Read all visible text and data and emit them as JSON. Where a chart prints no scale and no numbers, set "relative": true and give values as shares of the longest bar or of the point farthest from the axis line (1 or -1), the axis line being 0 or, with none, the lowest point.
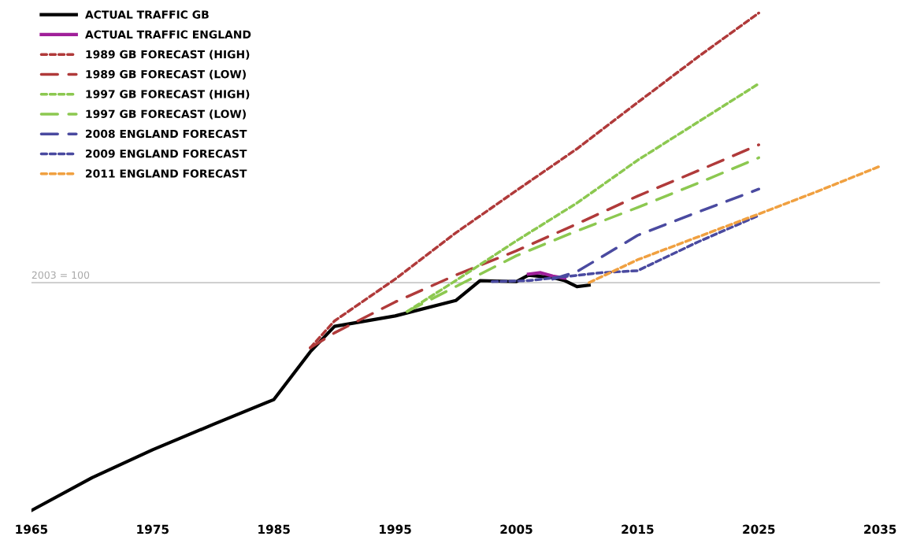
{
  "chart_data": {
    "type": "line",
    "relative": true,
    "legend": "top left",
    "grid": false,
    "xlim": [
      1965,
      2035
    ],
    "xticks": [
      1965,
      1975,
      1985,
      1995,
      2005,
      2015,
      2025,
      2035
    ],
    "ref_lines": [
      {
        "axis": "y",
        "value": 0.458,
        "color": "#c8c8c8",
        "line_style": "solid"
      }
    ],
    "annotations": [
      "2003 = 100"
    ],
    "series": [
      {
        "name": "ACTUAL TRAFFIC GB",
        "color": "#000000",
        "line_style": "solid",
        "x": [
          1965,
          1970,
          1975,
          1980,
          1985,
          1988,
          1990,
          1995,
          2000,
          2002,
          2005,
          2006,
          2008,
          2009,
          2010,
          2011
        ],
        "values": [
          0,
          0.066,
          0.122,
          0.173,
          0.223,
          0.319,
          0.37,
          0.391,
          0.422,
          0.462,
          0.46,
          0.473,
          0.468,
          0.462,
          0.45,
          0.453
        ]
      },
      {
        "name": "ACTUAL TRAFFIC ENGLAND",
        "color": "#a0209a",
        "line_style": "solid",
        "x": [
          2006,
          2007,
          2008,
          2009
        ],
        "values": [
          0.475,
          0.478,
          0.471,
          0.467
        ]
      },
      {
        "name": "1989 GB FORECAST (HIGH)",
        "color": "#b03a3a",
        "line_style": "dotted",
        "x": [
          1988,
          1990,
          1995,
          2000,
          2005,
          2010,
          2015,
          2020,
          2025
        ],
        "values": [
          0.327,
          0.381,
          0.465,
          0.558,
          0.643,
          0.727,
          0.82,
          0.912,
          1
        ]
      },
      {
        "name": "1989 GB FORECAST (LOW)",
        "color": "#b03a3a",
        "line_style": "dashed",
        "x": [
          1988,
          1990,
          1995,
          2000,
          2005,
          2010,
          2015,
          2020,
          2025
        ],
        "values": [
          0.327,
          0.357,
          0.419,
          0.473,
          0.522,
          0.576,
          0.632,
          0.683,
          0.735
        ]
      },
      {
        "name": "1997 GB FORECAST (HIGH)",
        "color": "#8cc850",
        "line_style": "dotted",
        "x": [
          1996,
          2000,
          2005,
          2010,
          2015,
          2020,
          2025
        ],
        "values": [
          0.4,
          0.462,
          0.542,
          0.618,
          0.704,
          0.781,
          0.858
        ]
      },
      {
        "name": "1997 GB FORECAST (LOW)",
        "color": "#8cc850",
        "line_style": "dashed",
        "x": [
          1996,
          2000,
          2005,
          2010,
          2015,
          2020,
          2025
        ],
        "values": [
          0.4,
          0.45,
          0.512,
          0.562,
          0.609,
          0.658,
          0.709
        ]
      },
      {
        "name": "2008 ENGLAND FORECAST",
        "color": "#4a4aa0",
        "line_style": "dashed",
        "x": [
          2008,
          2010,
          2015,
          2020,
          2025
        ],
        "values": [
          0.465,
          0.48,
          0.553,
          0.6,
          0.646
        ]
      },
      {
        "name": "2009 ENGLAND FORECAST",
        "color": "#4a4aa0",
        "line_style": "dotted",
        "x": [
          2003,
          2006,
          2009,
          2012,
          2015,
          2020,
          2025
        ],
        "values": [
          0.46,
          0.462,
          0.47,
          0.478,
          0.482,
          0.54,
          0.593
        ]
      },
      {
        "name": "2011 ENGLAND FORECAST",
        "color": "#f0a040",
        "line_style": "dotted",
        "x": [
          2011,
          2015,
          2020,
          2025,
          2030,
          2035
        ],
        "values": [
          0.458,
          0.504,
          0.55,
          0.596,
          0.643,
          0.692
        ]
      }
    ]
  }
}
